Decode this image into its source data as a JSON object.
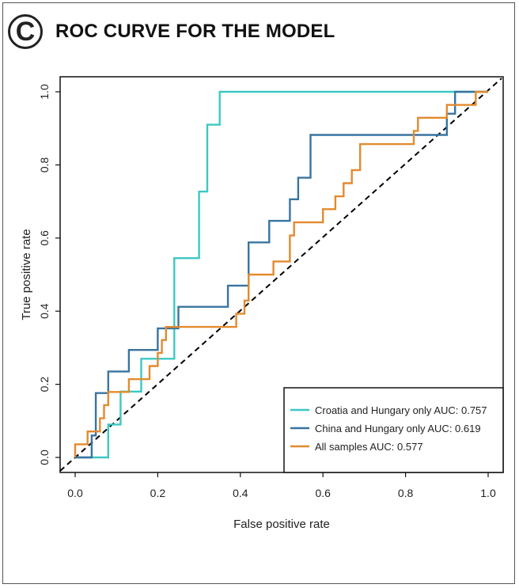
{
  "panel": {
    "letter": "C",
    "title": "ROC CURVE FOR THE MODEL"
  },
  "chart_data": {
    "type": "line",
    "title": "ROC CURVE FOR THE MODEL",
    "xlabel": "False positive rate",
    "ylabel": "True positive rate",
    "xlim": [
      0,
      1
    ],
    "ylim": [
      0,
      1
    ],
    "xticks": [
      "0.0",
      "0.2",
      "0.4",
      "0.6",
      "0.8",
      "1.0"
    ],
    "yticks": [
      "0.0",
      "0.2",
      "0.4",
      "0.6",
      "0.8",
      "1.0"
    ],
    "grid": false,
    "legend_position": "bottom-right",
    "reference_line": {
      "style": "dashed",
      "color": "#000000",
      "from": [
        0,
        0
      ],
      "to": [
        1,
        1
      ]
    },
    "series": [
      {
        "name": "Croatia and Hungary only AUC: 0.757",
        "color": "#3cc8c4",
        "points": [
          [
            0,
            0
          ],
          [
            0.08,
            0
          ],
          [
            0.08,
            0.09
          ],
          [
            0.11,
            0.09
          ],
          [
            0.11,
            0.18
          ],
          [
            0.16,
            0.18
          ],
          [
            0.16,
            0.27
          ],
          [
            0.24,
            0.27
          ],
          [
            0.24,
            0.545
          ],
          [
            0.3,
            0.545
          ],
          [
            0.3,
            0.727
          ],
          [
            0.32,
            0.727
          ],
          [
            0.32,
            0.91
          ],
          [
            0.35,
            0.91
          ],
          [
            0.35,
            1.0
          ],
          [
            1.0,
            1.0
          ]
        ]
      },
      {
        "name": "China and Hungary only AUC: 0.619",
        "color": "#3874a0",
        "points": [
          [
            0,
            0
          ],
          [
            0.04,
            0
          ],
          [
            0.04,
            0.06
          ],
          [
            0.05,
            0.06
          ],
          [
            0.05,
            0.176
          ],
          [
            0.08,
            0.176
          ],
          [
            0.08,
            0.235
          ],
          [
            0.13,
            0.235
          ],
          [
            0.13,
            0.294
          ],
          [
            0.2,
            0.294
          ],
          [
            0.2,
            0.353
          ],
          [
            0.25,
            0.353
          ],
          [
            0.25,
            0.412
          ],
          [
            0.37,
            0.412
          ],
          [
            0.37,
            0.47
          ],
          [
            0.42,
            0.47
          ],
          [
            0.42,
            0.588
          ],
          [
            0.47,
            0.588
          ],
          [
            0.47,
            0.647
          ],
          [
            0.52,
            0.647
          ],
          [
            0.52,
            0.706
          ],
          [
            0.54,
            0.706
          ],
          [
            0.54,
            0.765
          ],
          [
            0.57,
            0.765
          ],
          [
            0.57,
            0.882
          ],
          [
            0.9,
            0.882
          ],
          [
            0.9,
            0.94
          ],
          [
            0.92,
            0.94
          ],
          [
            0.92,
            1.0
          ],
          [
            1.0,
            1.0
          ]
        ]
      },
      {
        "name": "All samples AUC: 0.577",
        "color": "#e38a2e",
        "points": [
          [
            0,
            0
          ],
          [
            0,
            0.036
          ],
          [
            0.03,
            0.036
          ],
          [
            0.03,
            0.071
          ],
          [
            0.06,
            0.071
          ],
          [
            0.06,
            0.107
          ],
          [
            0.07,
            0.107
          ],
          [
            0.07,
            0.143
          ],
          [
            0.08,
            0.143
          ],
          [
            0.08,
            0.179
          ],
          [
            0.13,
            0.179
          ],
          [
            0.13,
            0.214
          ],
          [
            0.18,
            0.214
          ],
          [
            0.18,
            0.25
          ],
          [
            0.2,
            0.25
          ],
          [
            0.2,
            0.286
          ],
          [
            0.21,
            0.286
          ],
          [
            0.21,
            0.321
          ],
          [
            0.22,
            0.321
          ],
          [
            0.22,
            0.357
          ],
          [
            0.39,
            0.357
          ],
          [
            0.39,
            0.393
          ],
          [
            0.41,
            0.393
          ],
          [
            0.41,
            0.429
          ],
          [
            0.42,
            0.429
          ],
          [
            0.42,
            0.5
          ],
          [
            0.48,
            0.5
          ],
          [
            0.48,
            0.536
          ],
          [
            0.52,
            0.536
          ],
          [
            0.52,
            0.607
          ],
          [
            0.53,
            0.607
          ],
          [
            0.53,
            0.643
          ],
          [
            0.6,
            0.643
          ],
          [
            0.6,
            0.679
          ],
          [
            0.63,
            0.679
          ],
          [
            0.63,
            0.714
          ],
          [
            0.65,
            0.714
          ],
          [
            0.65,
            0.75
          ],
          [
            0.67,
            0.75
          ],
          [
            0.67,
            0.786
          ],
          [
            0.69,
            0.786
          ],
          [
            0.69,
            0.857
          ],
          [
            0.82,
            0.857
          ],
          [
            0.82,
            0.893
          ],
          [
            0.83,
            0.893
          ],
          [
            0.83,
            0.929
          ],
          [
            0.9,
            0.929
          ],
          [
            0.9,
            0.964
          ],
          [
            0.97,
            0.964
          ],
          [
            0.97,
            1.0
          ],
          [
            1.0,
            1.0
          ]
        ]
      }
    ]
  }
}
